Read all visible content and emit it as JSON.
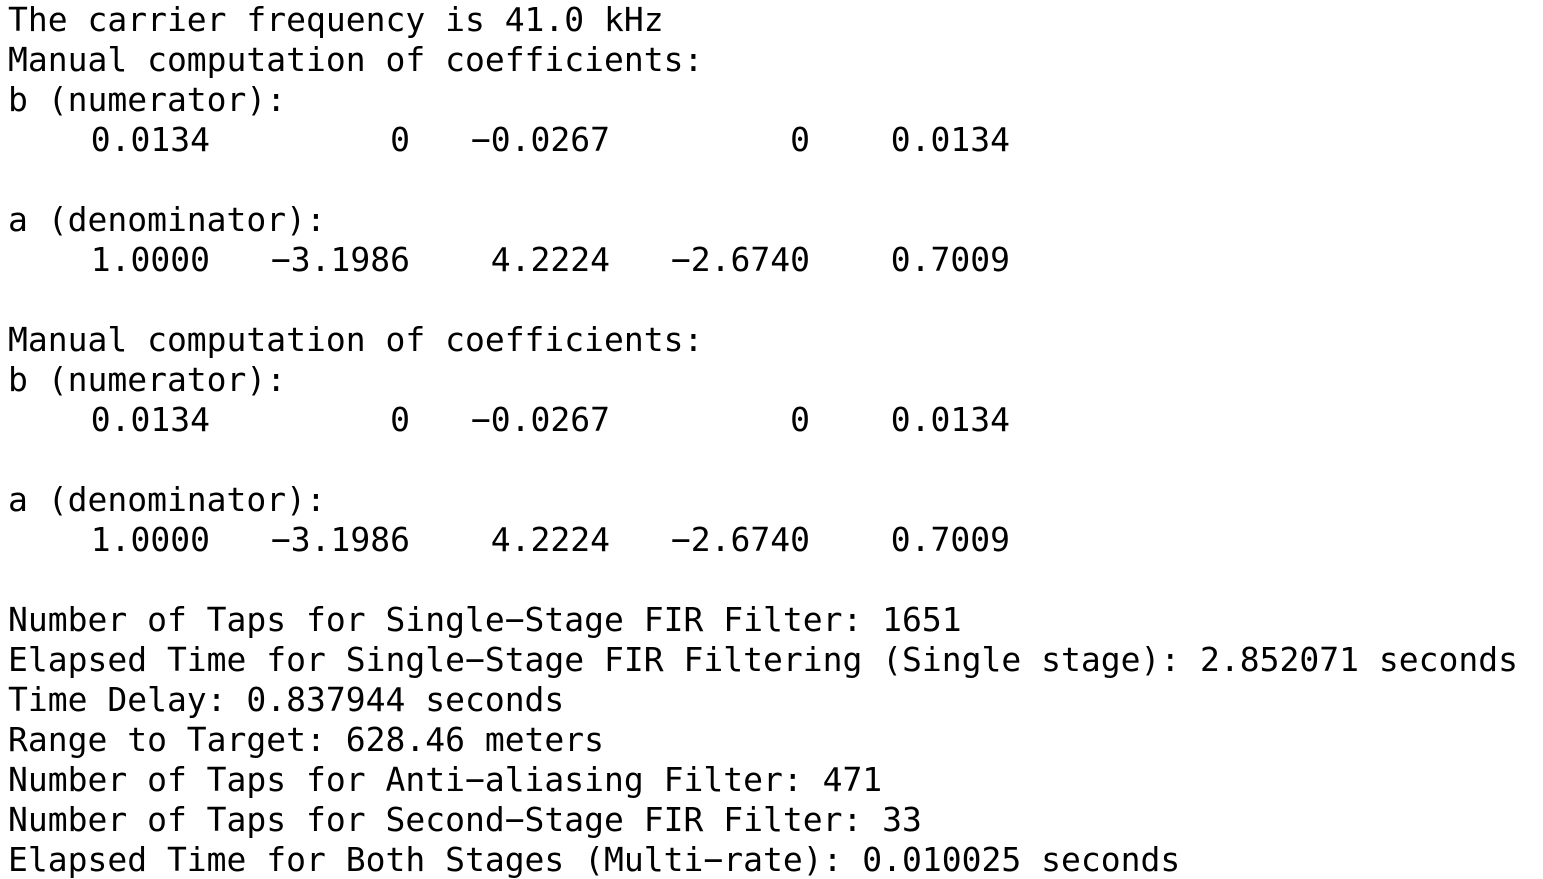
{
  "console": {
    "carrier_line": "The carrier frequency is 41.0 kHz",
    "blocks": [
      {
        "heading": "Manual computation of coefficients:",
        "b_label": "b (numerator):",
        "b_values": [
          "0.0134",
          "0",
          "−0.0267",
          "0",
          "0.0134"
        ],
        "a_label": "a (denominator):",
        "a_values": [
          "1.0000",
          "−3.1986",
          "4.2224",
          "−2.6740",
          "0.7009"
        ]
      },
      {
        "heading": "Manual computation of coefficients:",
        "b_label": "b (numerator):",
        "b_values": [
          "0.0134",
          "0",
          "−0.0267",
          "0",
          "0.0134"
        ],
        "a_label": "a (denominator):",
        "a_values": [
          "1.0000",
          "−3.1986",
          "4.2224",
          "−2.6740",
          "0.7009"
        ]
      }
    ],
    "results": [
      "Number of Taps for Single−Stage FIR Filter: 1651",
      "Elapsed Time for Single−Stage FIR Filtering (Single stage): 2.852071 seconds",
      "Time Delay: 0.837944 seconds",
      "Range to Target: 628.46 meters",
      "Number of Taps for Anti−aliasing Filter: 471",
      "Number of Taps for Second−Stage FIR Filter: 33",
      "Elapsed Time for Both Stages (Multi−rate): 0.010025 seconds"
    ]
  }
}
